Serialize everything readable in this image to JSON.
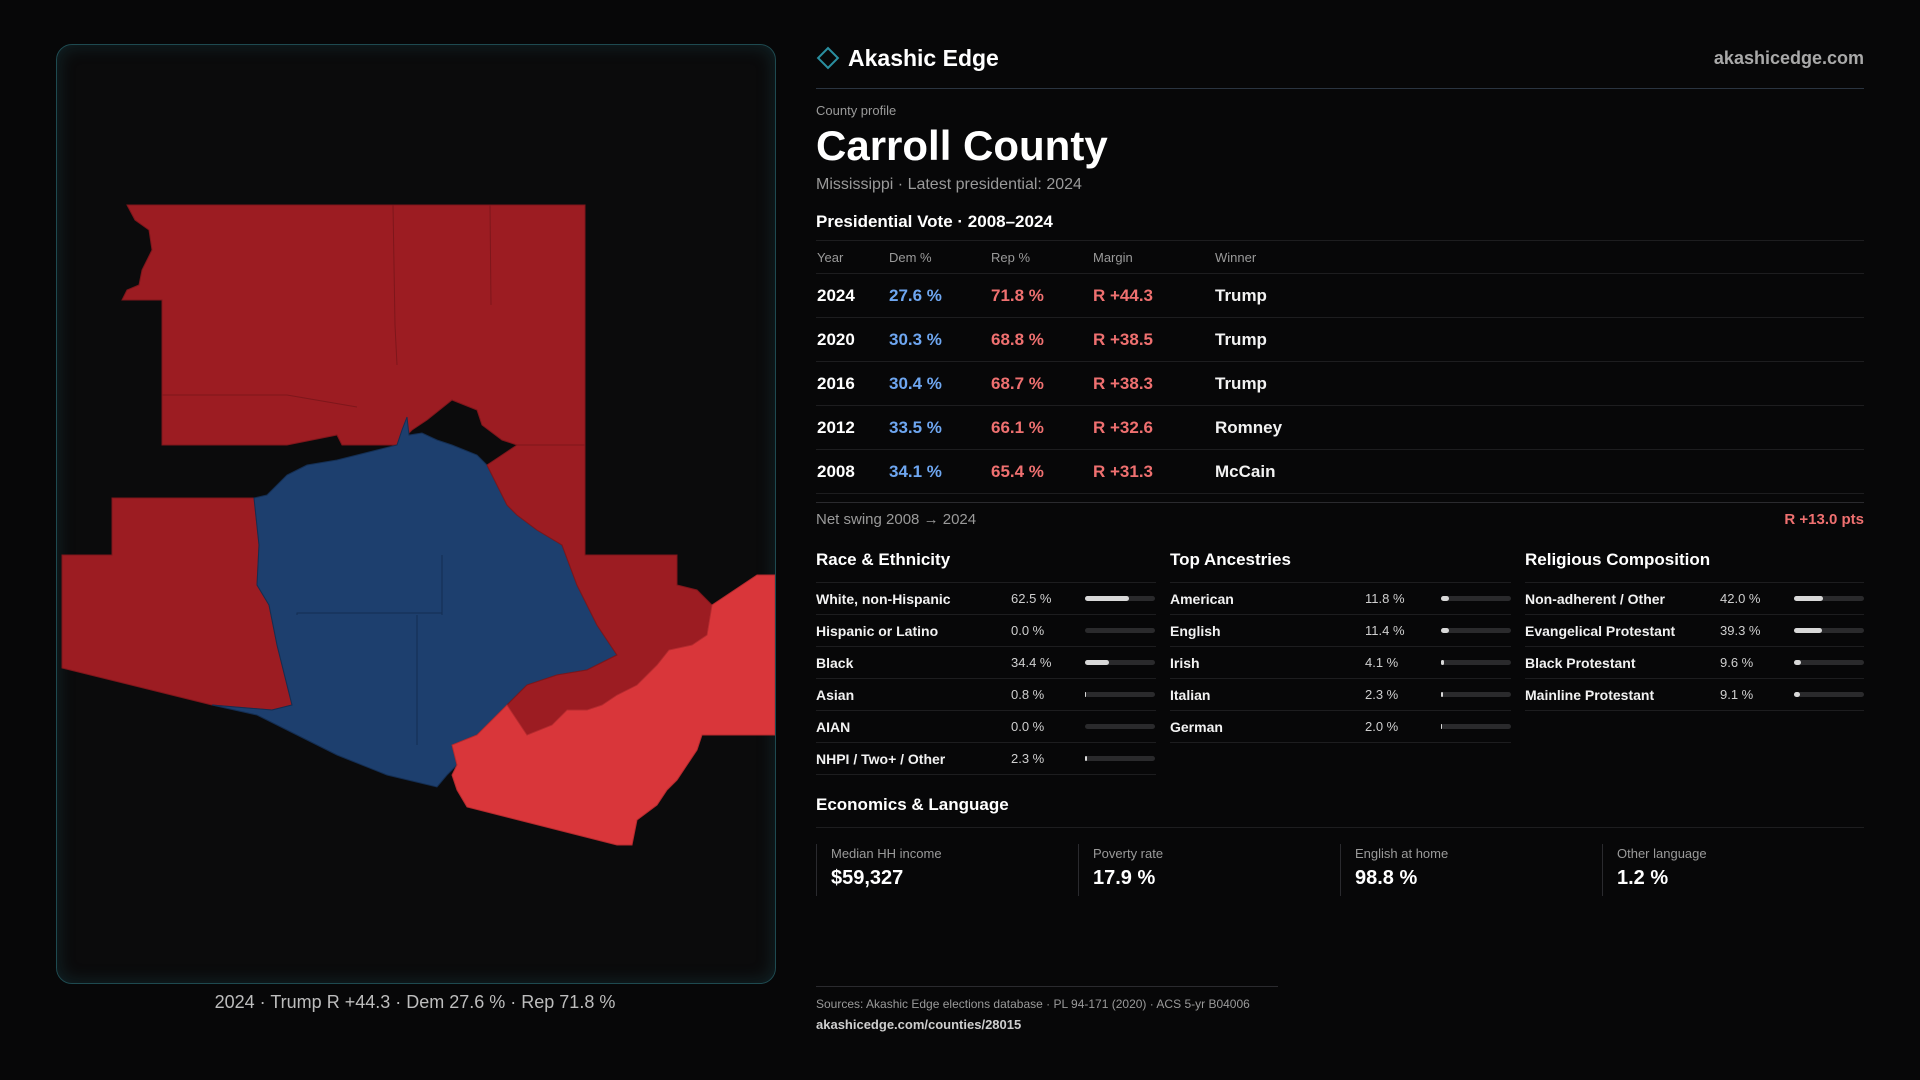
{
  "brand": {
    "name": "Akashic Edge",
    "site": "akashicedge.com"
  },
  "profile": {
    "eyebrow": "County profile",
    "county": "Carroll County",
    "subtitle": "Mississippi · Latest presidential: 2024"
  },
  "votes": {
    "title": "Presidential Vote · 2008–2024",
    "headers": [
      "Year",
      "Dem %",
      "Rep %",
      "Margin",
      "Winner"
    ],
    "rows": [
      {
        "year": "2024",
        "dem": "27.6 %",
        "rep": "71.8 %",
        "margin": "R +44.3",
        "winner": "Trump"
      },
      {
        "year": "2020",
        "dem": "30.3 %",
        "rep": "68.8 %",
        "margin": "R +38.5",
        "winner": "Trump"
      },
      {
        "year": "2016",
        "dem": "30.4 %",
        "rep": "68.7 %",
        "margin": "R +38.3",
        "winner": "Trump"
      },
      {
        "year": "2012",
        "dem": "33.5 %",
        "rep": "66.1 %",
        "margin": "R +32.6",
        "winner": "Romney"
      },
      {
        "year": "2008",
        "dem": "34.1 %",
        "rep": "65.4 %",
        "margin": "R +31.3",
        "winner": "McCain"
      }
    ],
    "swing_label": "Net swing 2008 → 2024",
    "swing_value": "R +13.0 pts"
  },
  "race": {
    "title": "Race & Ethnicity",
    "rows": [
      {
        "label": "White, non-Hispanic",
        "value": "62.5 %",
        "pct": 62.5
      },
      {
        "label": "Hispanic or Latino",
        "value": "0.0 %",
        "pct": 0.0
      },
      {
        "label": "Black",
        "value": "34.4 %",
        "pct": 34.4
      },
      {
        "label": "Asian",
        "value": "0.8 %",
        "pct": 0.8
      },
      {
        "label": "AIAN",
        "value": "0.0 %",
        "pct": 0.0
      },
      {
        "label": "NHPI / Two+ / Other",
        "value": "2.3 %",
        "pct": 2.3
      }
    ]
  },
  "ancestry": {
    "title": "Top Ancestries",
    "rows": [
      {
        "label": "American",
        "value": "11.8 %",
        "pct": 11.8
      },
      {
        "label": "English",
        "value": "11.4 %",
        "pct": 11.4
      },
      {
        "label": "Irish",
        "value": "4.1 %",
        "pct": 4.1
      },
      {
        "label": "Italian",
        "value": "2.3 %",
        "pct": 2.3
      },
      {
        "label": "German",
        "value": "2.0 %",
        "pct": 2.0
      }
    ]
  },
  "religion": {
    "title": "Religious Composition",
    "rows": [
      {
        "label": "Non-adherent / Other",
        "value": "42.0 %",
        "pct": 42.0
      },
      {
        "label": "Evangelical Protestant",
        "value": "39.3 %",
        "pct": 39.3
      },
      {
        "label": "Black Protestant",
        "value": "9.6 %",
        "pct": 9.6
      },
      {
        "label": "Mainline Protestant",
        "value": "9.1 %",
        "pct": 9.1
      }
    ]
  },
  "economics": {
    "title": "Economics & Language",
    "items": [
      {
        "label": "Median HH income",
        "value": "$59,327"
      },
      {
        "label": "Poverty rate",
        "value": "17.9 %"
      },
      {
        "label": "English at home",
        "value": "98.8 %"
      },
      {
        "label": "Other language",
        "value": "1.2 %"
      }
    ]
  },
  "map": {
    "caption": "2024 · Trump R +44.3 · Dem 27.6 % · Rep 71.8 %",
    "colors": {
      "rep_dark": "#9c1c22",
      "rep_light": "#d9363a",
      "dem": "#1d3f6e",
      "dem_alt": "#213f68"
    }
  },
  "footer": {
    "sources": "Sources: Akashic Edge elections database · PL 94-171 (2020) · ACS 5-yr B04006",
    "url": "akashicedge.com/counties/28015"
  },
  "colors": {
    "dem": "#6ea6f0",
    "rep": "#ef7070",
    "accent": "#2a8fa0",
    "background": "#070708"
  }
}
